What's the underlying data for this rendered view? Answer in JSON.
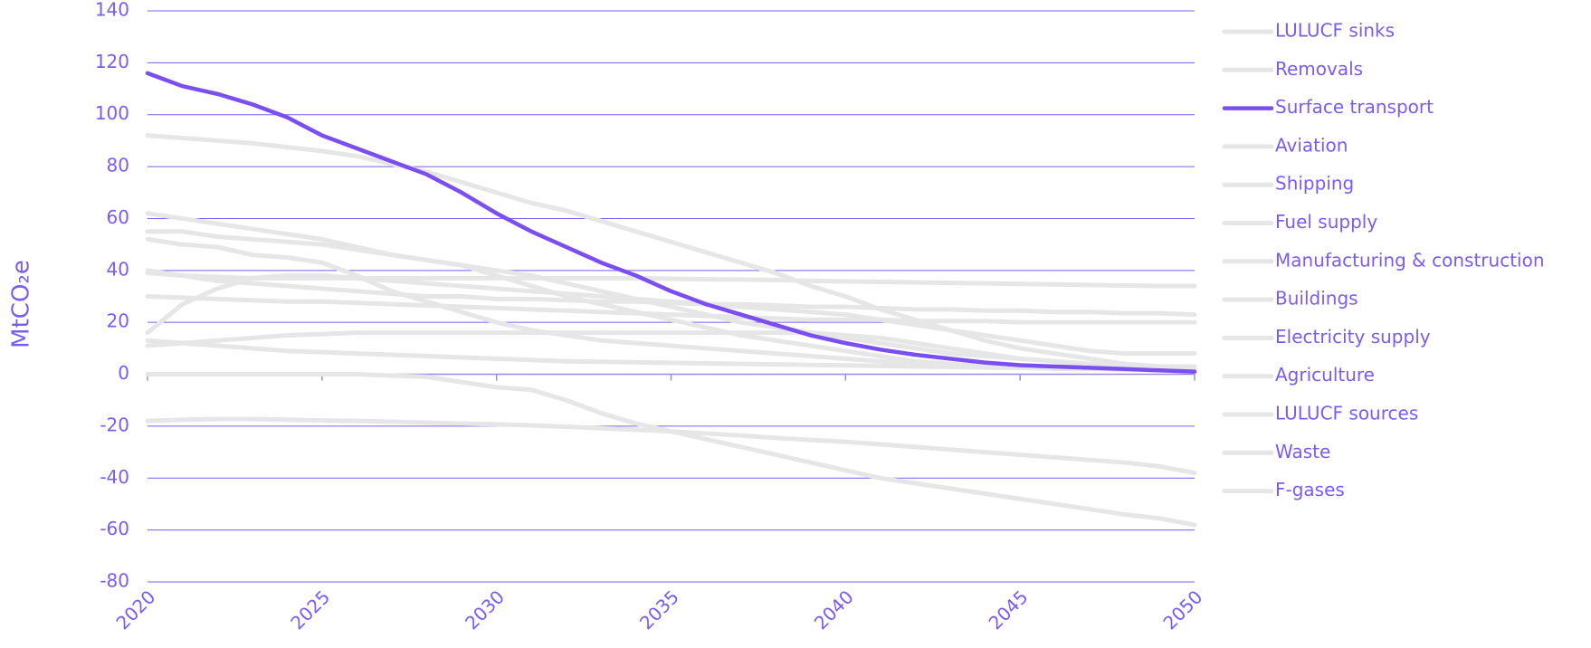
{
  "chart_data": {
    "type": "line",
    "y_label": "MtCO₂e",
    "x": [
      2020,
      2021,
      2022,
      2023,
      2024,
      2025,
      2026,
      2027,
      2028,
      2029,
      2030,
      2031,
      2032,
      2033,
      2034,
      2035,
      2036,
      2037,
      2038,
      2039,
      2040,
      2041,
      2042,
      2043,
      2044,
      2045,
      2046,
      2047,
      2048,
      2049,
      2050
    ],
    "xlim": [
      2020,
      2050
    ],
    "xticks": [
      2020,
      2025,
      2030,
      2035,
      2040,
      2045,
      2050
    ],
    "ylim": [
      -80,
      140
    ],
    "yticks": [
      -80,
      -60,
      -40,
      -20,
      0,
      20,
      40,
      60,
      80,
      100,
      120,
      140
    ],
    "grid": true,
    "series": [
      {
        "name": "LULUCF sinks",
        "color": "#e6e6e6",
        "values": [
          -18,
          -17.5,
          -17.3,
          -17.3,
          -17.5,
          -17.8,
          -18,
          -18.3,
          -18.6,
          -19,
          -19.3,
          -19.7,
          -20.2,
          -20.8,
          -21.4,
          -22,
          -22.8,
          -23.6,
          -24.5,
          -25.3,
          -26,
          -27,
          -28,
          -29,
          -30,
          -31,
          -32,
          -33,
          -34,
          -35.5,
          -38
        ]
      },
      {
        "name": "Removals",
        "color": "#e6e6e6",
        "values": [
          0,
          0,
          0,
          0,
          0,
          0,
          0,
          -0.5,
          -1,
          -3,
          -5,
          -6,
          -10,
          -15,
          -19,
          -22,
          -25,
          -28,
          -31,
          -34,
          -37,
          -40,
          -42,
          -44,
          -46,
          -48,
          -50,
          -52,
          -54,
          -55.5,
          -58
        ]
      },
      {
        "name": "Surface transport",
        "color": "#7b4ef0",
        "values": [
          116,
          111,
          108,
          104,
          99,
          92,
          87,
          82,
          77,
          70,
          62,
          55,
          49,
          43,
          38,
          32,
          27,
          23,
          19,
          15,
          12,
          9.5,
          7.5,
          6,
          4.5,
          3.5,
          3,
          2.5,
          2,
          1.5,
          1
        ]
      },
      {
        "name": "Aviation",
        "color": "#e6e6e6",
        "values": [
          39,
          38,
          37.5,
          37,
          37,
          37,
          37,
          37,
          37,
          37,
          37,
          37,
          37,
          37,
          37,
          36.8,
          36.6,
          36.5,
          36.3,
          36,
          35.8,
          35.6,
          35.4,
          35.2,
          35,
          34.8,
          34.6,
          34.4,
          34.2,
          34,
          34
        ]
      },
      {
        "name": "Shipping",
        "color": "#e6e6e6",
        "values": [
          30,
          29.5,
          29,
          28.5,
          28,
          28,
          27.5,
          27,
          26.5,
          26,
          25.5,
          25,
          24.5,
          24,
          23.5,
          23,
          22.5,
          22,
          21.5,
          21,
          21,
          21,
          20.5,
          20.5,
          20.5,
          20,
          20,
          20,
          20,
          20,
          20
        ]
      },
      {
        "name": "Fuel supply",
        "color": "#e6e6e6",
        "values": [
          62,
          60,
          58,
          56,
          54,
          52,
          49,
          46,
          44,
          42,
          40,
          38,
          35,
          32,
          29,
          26,
          23,
          20,
          18,
          16,
          14,
          12,
          10,
          8,
          7,
          6,
          5,
          4,
          3.5,
          3,
          3
        ]
      },
      {
        "name": "Manufacturing & construction",
        "color": "#e6e6e6",
        "values": [
          52,
          50,
          49,
          46,
          45,
          43,
          38,
          32,
          28,
          24,
          20,
          17,
          15,
          13,
          12,
          11,
          10,
          9,
          8,
          7,
          6,
          5,
          4,
          4,
          3,
          3,
          3,
          3,
          3,
          3,
          3
        ]
      },
      {
        "name": "Buildings",
        "color": "#e6e6e6",
        "values": [
          92,
          91,
          90,
          89,
          87.5,
          86,
          84,
          81,
          78,
          74,
          70,
          66,
          63,
          59,
          55,
          51,
          47,
          43,
          39,
          34,
          30,
          25,
          21,
          17,
          13,
          10,
          8,
          6,
          4,
          3,
          2
        ]
      },
      {
        "name": "Electricity supply",
        "color": "#e6e6e6",
        "values": [
          55,
          55,
          53,
          52,
          51,
          50,
          48,
          46,
          44,
          42,
          38,
          34,
          30,
          27,
          24,
          21,
          18,
          15,
          13,
          11,
          9,
          7,
          5,
          4,
          3,
          3,
          2,
          2,
          2,
          2,
          2
        ]
      },
      {
        "name": "Agriculture",
        "color": "#e6e6e6",
        "values": [
          40,
          38,
          36,
          35,
          34,
          33,
          32,
          31,
          30,
          30,
          29,
          29,
          28.5,
          28,
          28,
          27.5,
          27,
          27,
          26.5,
          26,
          26,
          25.5,
          25,
          25,
          24.5,
          24.5,
          24,
          24,
          23.5,
          23.5,
          23
        ]
      },
      {
        "name": "LULUCF sources",
        "color": "#e6e6e6",
        "values": [
          16,
          27,
          33,
          37,
          38,
          38,
          37,
          36,
          35,
          34,
          33,
          32,
          31,
          30,
          29,
          28,
          27,
          26,
          25,
          24,
          23,
          21,
          19,
          17,
          15,
          13,
          11,
          9,
          8,
          8,
          8
        ]
      },
      {
        "name": "Waste",
        "color": "#e6e6e6",
        "values": [
          13,
          12,
          11,
          10,
          9,
          8.5,
          8,
          7.5,
          7,
          6.5,
          6,
          5.5,
          5,
          4.8,
          4.6,
          4.4,
          4.2,
          4,
          3.8,
          3.6,
          3.4,
          3.2,
          3,
          2.8,
          2.6,
          2.4,
          2.2,
          2,
          1.8,
          1.6,
          1.5
        ]
      },
      {
        "name": "F-gases",
        "color": "#e6e6e6",
        "values": [
          11,
          12,
          13,
          14,
          15,
          15.5,
          16,
          16,
          16,
          16,
          16,
          16,
          16,
          16,
          16,
          16,
          16,
          16,
          16,
          16,
          15,
          14,
          12,
          10,
          8,
          6,
          5,
          4,
          3,
          2.5,
          2
        ]
      }
    ]
  }
}
